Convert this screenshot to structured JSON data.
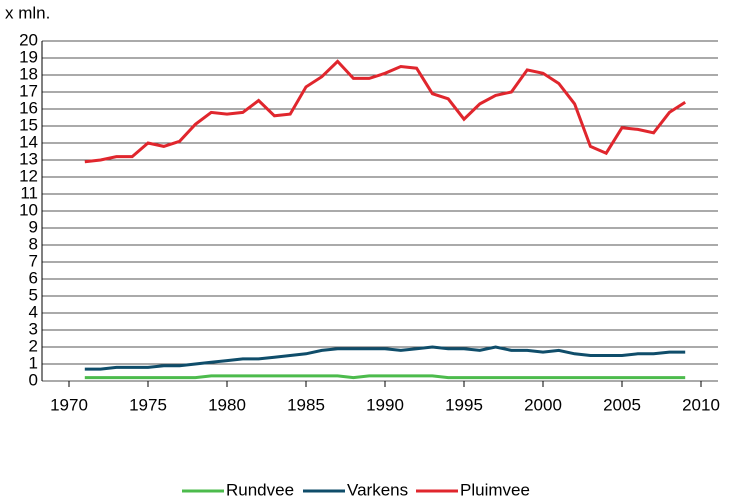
{
  "chart_data": {
    "type": "line",
    "y_label": "x mln.",
    "x": [
      1971,
      1972,
      1973,
      1974,
      1975,
      1976,
      1977,
      1978,
      1979,
      1980,
      1981,
      1982,
      1983,
      1984,
      1985,
      1986,
      1987,
      1988,
      1989,
      1990,
      1991,
      1992,
      1993,
      1994,
      1995,
      1996,
      1997,
      1998,
      1999,
      2000,
      2001,
      2002,
      2003,
      2004,
      2005,
      2006,
      2007,
      2008,
      2009
    ],
    "series": [
      {
        "name": "Rundvee",
        "color": "#4cbb4c",
        "values": [
          0.2,
          0.2,
          0.2,
          0.2,
          0.2,
          0.2,
          0.2,
          0.2,
          0.3,
          0.3,
          0.3,
          0.3,
          0.3,
          0.3,
          0.3,
          0.3,
          0.3,
          0.2,
          0.3,
          0.3,
          0.3,
          0.3,
          0.3,
          0.2,
          0.2,
          0.2,
          0.2,
          0.2,
          0.2,
          0.2,
          0.2,
          0.2,
          0.2,
          0.2,
          0.2,
          0.2,
          0.2,
          0.2,
          0.2
        ]
      },
      {
        "name": "Varkens",
        "color": "#0f4d6a",
        "values": [
          0.7,
          0.7,
          0.8,
          0.8,
          0.8,
          0.9,
          0.9,
          1.0,
          1.1,
          1.2,
          1.3,
          1.3,
          1.4,
          1.5,
          1.6,
          1.8,
          1.9,
          1.9,
          1.9,
          1.9,
          1.8,
          1.9,
          2.0,
          1.9,
          1.9,
          1.8,
          2.0,
          1.8,
          1.8,
          1.7,
          1.8,
          1.6,
          1.5,
          1.5,
          1.5,
          1.6,
          1.6,
          1.7,
          1.7
        ]
      },
      {
        "name": "Pluimvee",
        "color": "#e0262d",
        "values": [
          12.9,
          13.0,
          13.2,
          13.2,
          14.0,
          13.8,
          14.1,
          15.1,
          15.8,
          15.7,
          15.8,
          16.5,
          15.6,
          15.7,
          17.3,
          17.9,
          18.8,
          17.8,
          17.8,
          18.1,
          18.5,
          18.4,
          16.9,
          16.6,
          15.4,
          16.3,
          16.8,
          17.0,
          18.3,
          18.1,
          17.5,
          16.3,
          13.8,
          13.4,
          14.9,
          14.8,
          14.6,
          15.8,
          16.4
        ]
      }
    ],
    "xlim": [
      1970,
      2010
    ],
    "xticks": [
      1970,
      1975,
      1980,
      1985,
      1990,
      1995,
      2000,
      2005,
      2010
    ],
    "ylim": [
      0,
      20
    ],
    "yticks": [
      0,
      1,
      2,
      3,
      4,
      5,
      6,
      7,
      8,
      9,
      10,
      11,
      12,
      13,
      14,
      15,
      16,
      17,
      18,
      19,
      20
    ],
    "grid": true,
    "legend": "bottom"
  }
}
